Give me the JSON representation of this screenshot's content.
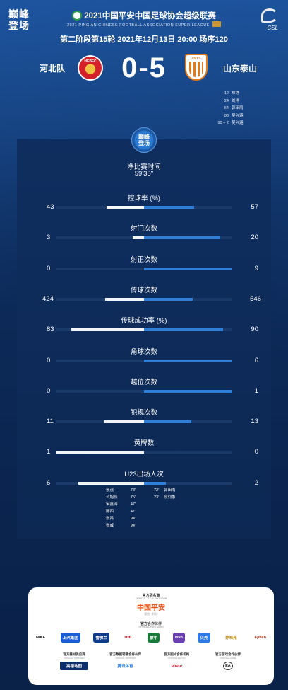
{
  "brand": {
    "line1": "巅峰",
    "line2": "登场"
  },
  "league": {
    "title": "2021中国平安中国足球协会超级联赛",
    "subtitle": "2021 PING AN CHINESE FOOTBALL ASSOCIATION SUPER LEAGUE",
    "logo_text": "CSL"
  },
  "match_info": "第二阶段第15轮  2021年12月13日 20:00 场序120",
  "home": {
    "name": "河北队",
    "badge_text": "HEBFC",
    "color": "#d3202b"
  },
  "away": {
    "name": "山东泰山",
    "badge_text": "LNTS",
    "color": "#e07a1a"
  },
  "score": "0-5",
  "goals": [
    {
      "minute": "12'",
      "player": "郑铮"
    },
    {
      "minute": "24'",
      "player": "刘洋"
    },
    {
      "minute": "64'",
      "player": "郭田雨"
    },
    {
      "minute": "88'",
      "player": "吴兴涵"
    },
    {
      "minute": "90 + 2'",
      "player": "吴兴涵"
    }
  ],
  "emblem": {
    "line1": "巅峰",
    "line2": "登场"
  },
  "effective_time": {
    "label": "净比赛时间",
    "value": "59'35''"
  },
  "stats": [
    {
      "label": "控球率 (%)",
      "home": "43",
      "away": "57",
      "home_frac": 0.43,
      "away_frac": 0.57
    },
    {
      "label": "射门次数",
      "home": "3",
      "away": "20",
      "home_frac": 0.13,
      "away_frac": 0.87
    },
    {
      "label": "射正次数",
      "home": "0",
      "away": "9",
      "home_frac": 0.0,
      "away_frac": 1.0
    },
    {
      "label": "传球次数",
      "home": "424",
      "away": "546",
      "home_frac": 0.44,
      "away_frac": 0.56
    },
    {
      "label": "传球成功率 (%)",
      "home": "83",
      "away": "90",
      "home_frac": 0.83,
      "away_frac": 0.9
    },
    {
      "label": "角球次数",
      "home": "0",
      "away": "6",
      "home_frac": 0.0,
      "away_frac": 1.0
    },
    {
      "label": "越位次数",
      "home": "0",
      "away": "1",
      "home_frac": 0.0,
      "away_frac": 1.0
    },
    {
      "label": "犯规次数",
      "home": "11",
      "away": "13",
      "home_frac": 0.46,
      "away_frac": 0.54
    },
    {
      "label": "黄牌数",
      "home": "1",
      "away": "0",
      "home_frac": 1.0,
      "away_frac": 0.0
    },
    {
      "label": "U23出场人次",
      "home": "6",
      "away": "2",
      "home_frac": 0.75,
      "away_frac": 0.25
    }
  ],
  "u23_home": [
    {
      "player": "张茂",
      "minute": "78'"
    },
    {
      "player": "么旭辰",
      "minute": "75'"
    },
    {
      "player": "宋鑫涛",
      "minute": "47'"
    },
    {
      "player": "滕西",
      "minute": "47'"
    },
    {
      "player": "张禹",
      "minute": "94'"
    },
    {
      "player": "张威",
      "minute": "94'"
    }
  ],
  "u23_away": [
    {
      "minute": "72'",
      "player": "郭田雨"
    },
    {
      "minute": "23'",
      "player": "段刘愚"
    }
  ],
  "sponsors": {
    "title_partner": "官方冠名商",
    "title_partner_en": "OFFICIAL TITLE SPONSOR",
    "pingan_name": "中国平安",
    "pingan_slogan": "保险 · 科技",
    "partners_label": "官方合作伙伴",
    "partners_en": "OFFICIAL PARTNERS",
    "logos": [
      "NIKE",
      "上汽集团",
      "雪佛兰",
      "DHL",
      "蒙牛",
      "vivo",
      "贝壳",
      "养味苑",
      "Ajinen"
    ],
    "logo_colors": [
      "#111111",
      "#1a5bd6",
      "#0e3a8a",
      "#d40511",
      "#1a7a3a",
      "#6a3fb0",
      "#2c7be5",
      "#b8860b",
      "#c0392b"
    ],
    "suppliers": [
      {
        "title": "官方器材供应商",
        "sub": "OFFICIAL SUPPLIER",
        "logo": "高德地图"
      },
      {
        "title": "官方数据转播合作伙伴",
        "sub": "OFFICIAL PARTNER",
        "logo": "腾讯体育"
      },
      {
        "title": "官方图片合作机构",
        "sub": "OFFICIAL PHOTO",
        "logo": "photo"
      },
      {
        "title": "官方游戏合作伙伴",
        "sub": "OFFICIAL GAME",
        "logo": "EA"
      }
    ]
  }
}
